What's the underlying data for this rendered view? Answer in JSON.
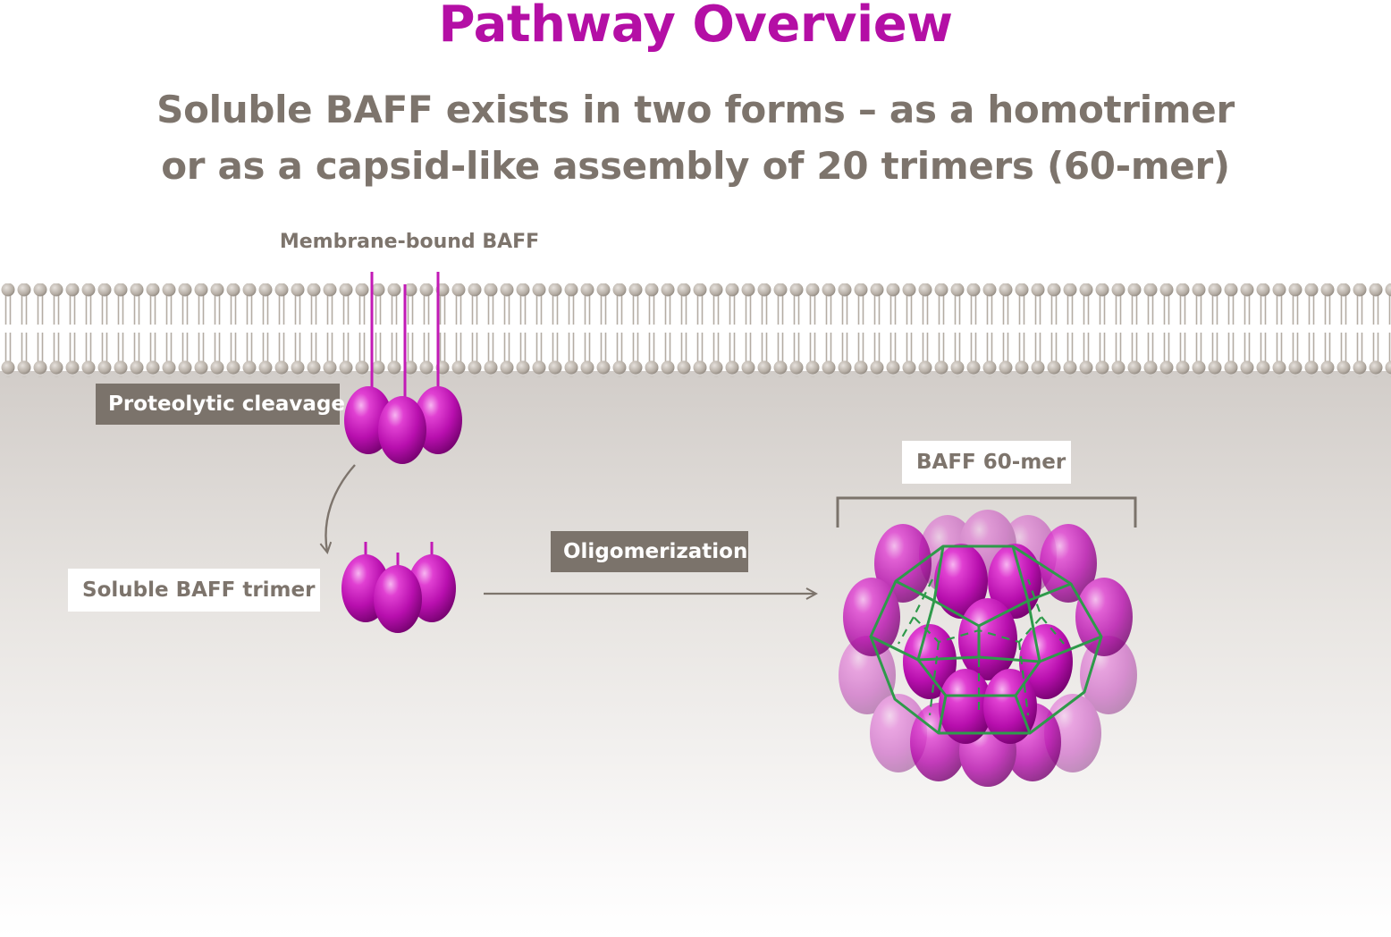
{
  "title": "Pathway Overview",
  "subtitle": {
    "line1": "Soluble BAFF exists in two forms – as a homotrimer",
    "line2": "or as a capsid-like assembly of 20 trimers (60-mer)"
  },
  "labels": {
    "membrane_bound": "Membrane-bound BAFF",
    "proteolytic_cleavage": "Proteolytic cleavage",
    "soluble_trimer": "Soluble BAFF trimer",
    "oligomerization": "Oligomerization",
    "baff_60mer": "BAFF 60-mer"
  },
  "colors": {
    "title": "#b40fa5",
    "text_gray": "#7d746c",
    "label_box_dark": "#7b736b",
    "protein_magenta": "#c418b8",
    "cage_green": "#2e9a4a",
    "lipid_head": "#bdb5ac"
  }
}
